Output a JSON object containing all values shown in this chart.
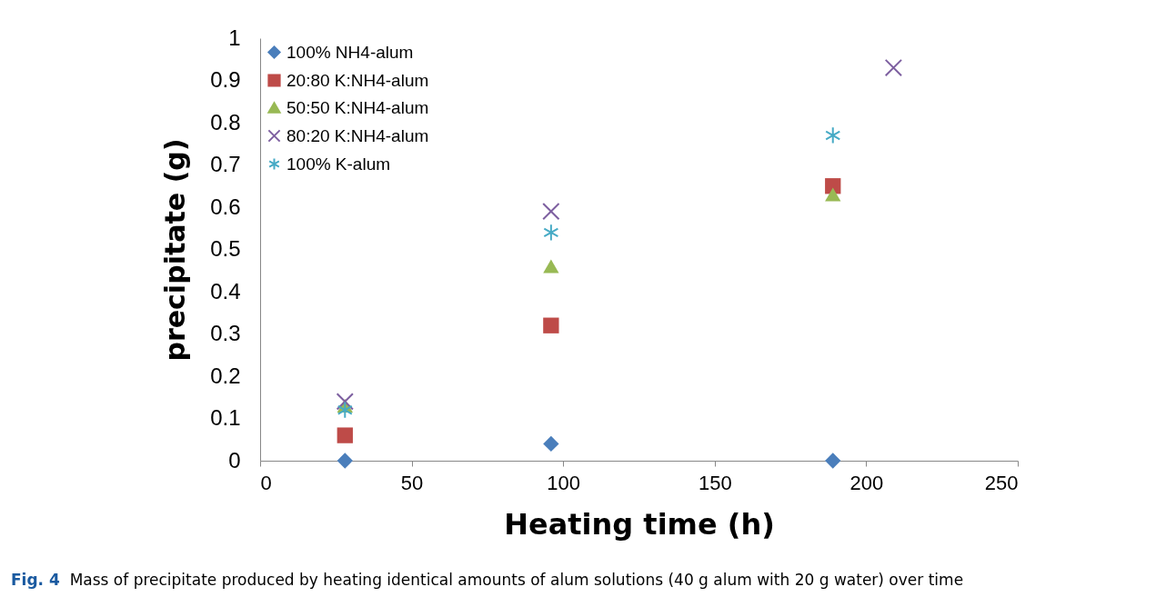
{
  "chart_data": {
    "type": "scatter",
    "xlabel": "Heating time (h)",
    "ylabel": "precipitate (g)",
    "x": [
      28,
      96,
      189
    ],
    "series": [
      {
        "name": "100% NH4-alum",
        "color": "#4a7ebb",
        "marker": "diamond",
        "values": [
          0,
          0.04,
          0
        ]
      },
      {
        "name": "20:80 K:NH4-alum",
        "color": "#be4b48",
        "marker": "square",
        "values": [
          0.06,
          0.32,
          0.65
        ]
      },
      {
        "name": "50:50 K:NH4-alum",
        "color": "#98b954",
        "marker": "triangle",
        "values": [
          0.13,
          0.46,
          0.63
        ]
      },
      {
        "name": "80:20 K:NH4-alum",
        "color": "#7d5fa0",
        "marker": "cross",
        "x": [
          28,
          96,
          209
        ],
        "values": [
          0.14,
          0.59,
          0.93
        ]
      },
      {
        "name": "100% K-alum",
        "color": "#46aac5",
        "values": [
          0.12,
          0.54,
          0.77
        ]
      }
    ],
    "xlim": [
      0,
      250
    ],
    "xticks": [
      0,
      50,
      100,
      150,
      200,
      250
    ],
    "ylim": [
      0,
      1
    ],
    "yticks": [
      0,
      0.1,
      0.2,
      0.3,
      0.4,
      0.5,
      0.6,
      0.7,
      0.8,
      0.9,
      1
    ],
    "grid": false,
    "legend": "top left",
    "annotations": [
      "Fig. 4  Mass of precipitate produced by heating identical amounts of alum solutions (40 g alum with 20 g water) over time"
    ]
  }
}
